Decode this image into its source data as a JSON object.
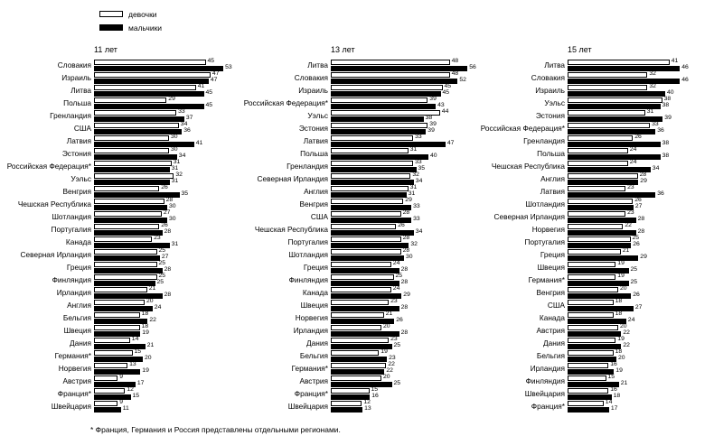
{
  "legend": {
    "items": [
      {
        "label": "девочки",
        "color": "#ffffff"
      },
      {
        "label": "мальчики",
        "color": "#000000"
      }
    ]
  },
  "footnote": "* Франция, Германия и Россия представлены отдельными регионами.",
  "chart_data": [
    {
      "type": "bar",
      "orientation": "horizontal",
      "title": "11 лет",
      "xlim": [
        0,
        60
      ],
      "value_labels": true,
      "categories": [
        "Словакия",
        "Израиль",
        "Литва",
        "Польша",
        "Гренландия",
        "США",
        "Латвия",
        "Эстония",
        "Российская Федерация*",
        "Уэльс",
        "Венгрия",
        "Чешская Республика",
        "Шотландия",
        "Португалия",
        "Канада",
        "Северная Ирландия",
        "Греция",
        "Финляндия",
        "Ирландия",
        "Англия",
        "Бельгия",
        "Швеция",
        "Дания",
        "Германия*",
        "Норвегия",
        "Австрия",
        "Франция*",
        "Швейцария"
      ],
      "series": [
        {
          "name": "девочки",
          "color": "#ffffff",
          "values": [
            45,
            47,
            41,
            29,
            33,
            34,
            30,
            30,
            31,
            32,
            26,
            28,
            27,
            26,
            23,
            25,
            25,
            25,
            21,
            20,
            18,
            18,
            14,
            15,
            13,
            9,
            12,
            9
          ]
        },
        {
          "name": "мальчики",
          "color": "#000000",
          "values": [
            53,
            47,
            45,
            45,
            37,
            36,
            41,
            34,
            31,
            31,
            35,
            30,
            30,
            28,
            31,
            27,
            28,
            25,
            28,
            24,
            22,
            19,
            21,
            20,
            19,
            17,
            15,
            11
          ]
        }
      ]
    },
    {
      "type": "bar",
      "orientation": "horizontal",
      "title": "13 лет",
      "xlim": [
        0,
        60
      ],
      "value_labels": true,
      "categories": [
        "Литва",
        "Словакия",
        "Израиль",
        "Российская Федерация*",
        "Уэльс",
        "Эстония",
        "Латвия",
        "Польша",
        "Гренландия",
        "Северная Ирландия",
        "Англия",
        "Венгрия",
        "США",
        "Чешская Республика",
        "Португалия",
        "Шотландия",
        "Греция",
        "Финляндия",
        "Канада",
        "Швеция",
        "Норвегия",
        "Ирландия",
        "Дания",
        "Бельгия",
        "Германия*",
        "Австрия",
        "Франция*",
        "Швейцария"
      ],
      "series": [
        {
          "name": "девочки",
          "color": "#ffffff",
          "values": [
            48,
            48,
            45,
            39,
            44,
            39,
            33,
            31,
            33,
            32,
            31,
            29,
            28,
            26,
            28,
            28,
            24,
            25,
            24,
            23,
            21,
            20,
            23,
            19,
            22,
            20,
            15,
            12
          ]
        },
        {
          "name": "мальчики",
          "color": "#000000",
          "values": [
            56,
            52,
            45,
            43,
            38,
            39,
            47,
            40,
            35,
            34,
            31,
            33,
            33,
            34,
            32,
            30,
            28,
            28,
            29,
            28,
            26,
            28,
            25,
            23,
            22,
            25,
            16,
            13
          ]
        }
      ]
    },
    {
      "type": "bar",
      "orientation": "horizontal",
      "title": "15 лет",
      "xlim": [
        0,
        60
      ],
      "value_labels": true,
      "categories": [
        "Литва",
        "Словакия",
        "Израиль",
        "Уэльс",
        "Эстония",
        "Российская Федерация*",
        "Гренландия",
        "Польша",
        "Чешская Республика",
        "Англия",
        "Латвия",
        "Шотландия",
        "Северная Ирландия",
        "Норвегия",
        "Португалия",
        "Греция",
        "Швеция",
        "Германия*",
        "Венгрия",
        "США",
        "Канада",
        "Австрия",
        "Дания",
        "Бельгия",
        "Ирландия",
        "Финляндия",
        "Швейцария",
        "Франция*"
      ],
      "series": [
        {
          "name": "девочки",
          "color": "#ffffff",
          "values": [
            41,
            32,
            32,
            38,
            31,
            33,
            26,
            24,
            24,
            28,
            23,
            26,
            23,
            22,
            25,
            21,
            19,
            19,
            20,
            18,
            18,
            20,
            19,
            18,
            16,
            15,
            16,
            14
          ]
        },
        {
          "name": "мальчики",
          "color": "#000000",
          "values": [
            46,
            46,
            40,
            38,
            39,
            36,
            38,
            38,
            34,
            29,
            36,
            27,
            28,
            28,
            26,
            29,
            25,
            25,
            26,
            27,
            24,
            22,
            22,
            20,
            19,
            21,
            18,
            17
          ]
        }
      ]
    }
  ]
}
